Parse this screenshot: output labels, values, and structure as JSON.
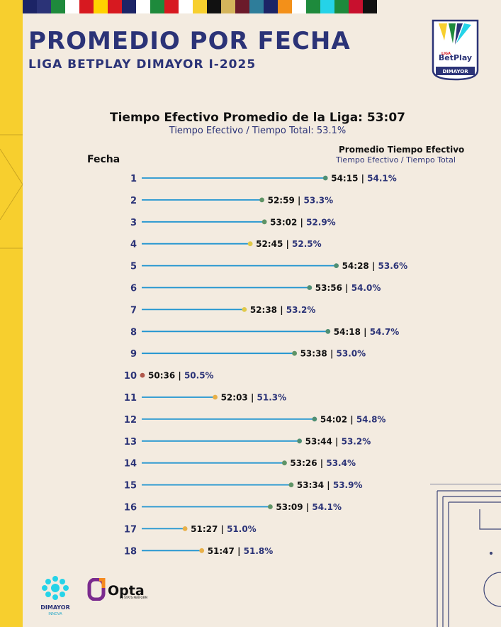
{
  "header": {
    "title": "PROMEDIO POR FECHA",
    "subtitle": "LIGA BETPLAY DIMAYOR I-2025"
  },
  "logo": {
    "liga": "LIGA",
    "brand": "BetPlay",
    "org": "DIMAYOR"
  },
  "chart_data": {
    "type": "scatter",
    "title": "Tiempo Efectivo Promedio de la Liga: 53:07",
    "subtitle": "Tiempo Efectivo / Tiempo Total: 53.1%",
    "category_label": "Fecha",
    "value_header": "Promedio Tiempo Efectivo",
    "value_subheader": "Tiempo Efectivo / Tiempo Total",
    "categories": [
      "1",
      "2",
      "3",
      "4",
      "5",
      "6",
      "7",
      "8",
      "9",
      "10",
      "11",
      "12",
      "13",
      "14",
      "15",
      "16",
      "17",
      "18"
    ],
    "times": [
      "54:15",
      "52:59",
      "53:02",
      "52:45",
      "54:28",
      "53:56",
      "52:38",
      "54:18",
      "53:38",
      "50:36",
      "52:03",
      "54:02",
      "53:44",
      "53:26",
      "53:34",
      "53:09",
      "51:27",
      "51:47"
    ],
    "percentages": [
      "54.1%",
      "53.3%",
      "52.9%",
      "52.5%",
      "53.6%",
      "54.0%",
      "53.2%",
      "54.7%",
      "53.0%",
      "50.5%",
      "51.3%",
      "54.8%",
      "53.2%",
      "53.4%",
      "53.9%",
      "54.1%",
      "51.0%",
      "51.8%"
    ],
    "minutes": [
      54.25,
      52.983,
      53.033,
      52.75,
      54.467,
      53.933,
      52.633,
      54.3,
      53.633,
      50.6,
      52.05,
      54.033,
      53.733,
      53.433,
      53.567,
      53.15,
      51.45,
      51.783
    ],
    "point_colors": [
      "#4f8f73",
      "#5f9466",
      "#5f9466",
      "#e0c94a",
      "#4f8f73",
      "#4f8f73",
      "#e0c94a",
      "#4f8f73",
      "#5f9466",
      "#b0584c",
      "#e8b048",
      "#4f8f73",
      "#4f8f73",
      "#5f9466",
      "#5f9466",
      "#5f9466",
      "#e8b048",
      "#e8b048"
    ],
    "line_color": "#1f94d0",
    "separator": "|"
  },
  "footer": {
    "dimayor_label": "DIMAYOR",
    "innova_label": "INNOVA",
    "opta_label": "Opta",
    "opta_sub": "by STATS PERFORM"
  },
  "colors": {
    "background": "#f3ebe0",
    "navy": "#2b3377",
    "yellow": "#f7cf2e",
    "stripe": [
      "#1c2466",
      "#2b3377",
      "#1e8a3c",
      "#ffffff",
      "#d71920",
      "#ffd200",
      "#d71920",
      "#1c2466",
      "#ffffff",
      "#1e8a3c",
      "#d71920",
      "#ffffff",
      "#f7cf2e",
      "#111111",
      "#d4b45b",
      "#6b1a2a",
      "#2e7d9a",
      "#1c2466",
      "#f39019",
      "#ffffff",
      "#1e8a3c",
      "#25d3e8",
      "#1e8a3c",
      "#c8102e",
      "#111111"
    ]
  }
}
